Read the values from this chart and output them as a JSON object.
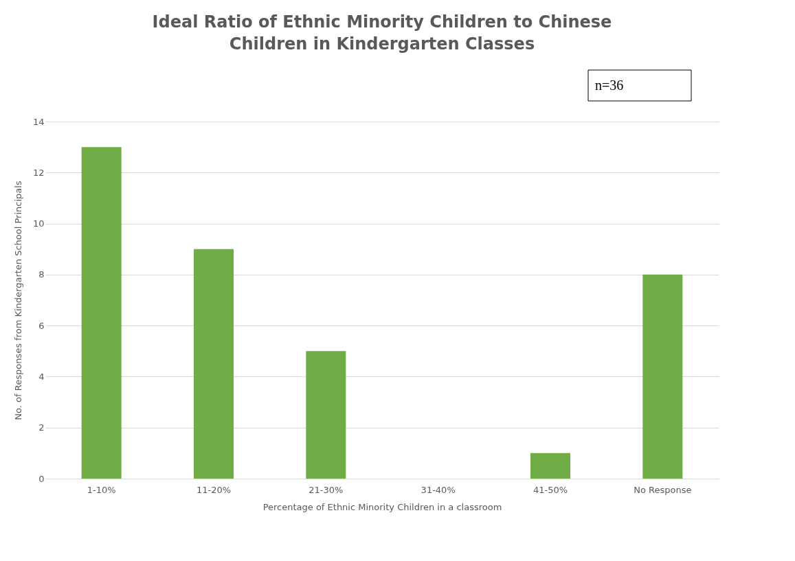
{
  "chart_data": {
    "type": "bar",
    "title": "Ideal Ratio of Ethnic Minority Children to Chinese Children in Kindergarten Classes",
    "xlabel": "Percentage of Ethnic Minority Children in a classroom",
    "ylabel": "No. of Responses from Kindergarten School Principals",
    "categories": [
      "1-10%",
      "11-20%",
      "21-30%",
      "31-40%",
      "41-50%",
      "No Response"
    ],
    "values": [
      13,
      9,
      5,
      0,
      1,
      8
    ],
    "color": "#70ad47",
    "ylim": [
      0,
      14
    ],
    "yticks": [
      0,
      2,
      4,
      6,
      8,
      10,
      12,
      14
    ],
    "grid": "y",
    "annotations": [
      "n=36"
    ]
  }
}
